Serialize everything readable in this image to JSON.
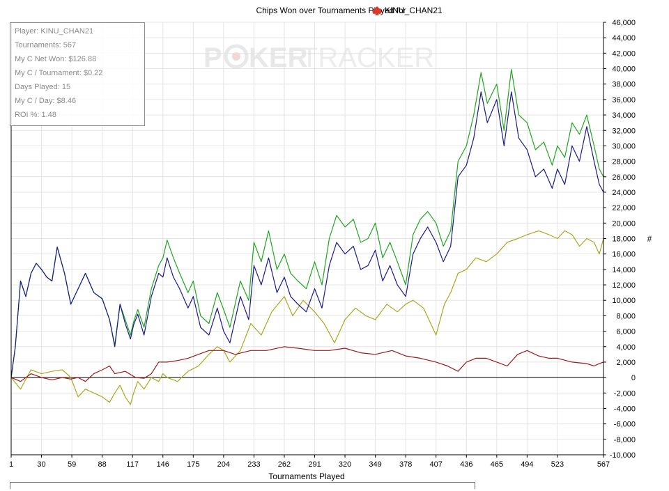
{
  "header": {
    "title_prefix": "Chips Won over Tournaments Played for",
    "player_name": "KINU_CHAN21",
    "player_icon": "poker-spade-icon",
    "watermark_left": "P",
    "watermark_chip": "chip-icon",
    "watermark_mid": "KER",
    "watermark_right": "TRACKER"
  },
  "stats": [
    {
      "label": "Player",
      "value": "KINU_CHAN21"
    },
    {
      "label": "Tournaments",
      "value": "567"
    },
    {
      "label": "My C Net Won",
      "value": "$126.88"
    },
    {
      "label": "My C / Tournament",
      "value": "$0.22"
    },
    {
      "label": "Days Played",
      "value": "15"
    },
    {
      "label": "My C / Day",
      "value": "$8.46"
    },
    {
      "label": "ROI %",
      "value": "1.48"
    }
  ],
  "colors": {
    "green": "#1fa61f",
    "blue": "#1a1a8c",
    "olive": "#a8a81e",
    "red": "#a01818",
    "grid": "#e4e4e4",
    "axis": "#000000",
    "watermark": "#ececec"
  },
  "chart_data": {
    "type": "line",
    "title": "Chips Won over Tournaments Played for KINU_CHAN21",
    "xlabel": "Tournaments Played",
    "ylabel": "#",
    "xlim": [
      1,
      567
    ],
    "ylim": [
      -10000,
      46000
    ],
    "x_ticks": [
      1,
      30,
      59,
      88,
      117,
      146,
      175,
      204,
      233,
      262,
      291,
      320,
      349,
      378,
      407,
      436,
      465,
      494,
      523,
      567
    ],
    "y_ticks": [
      46000,
      44000,
      42000,
      40000,
      38000,
      36000,
      34000,
      32000,
      30000,
      28000,
      26000,
      24000,
      22000,
      20000,
      18000,
      16000,
      14000,
      12000,
      10000,
      8000,
      6000,
      4000,
      2000,
      0,
      -2000,
      -4000,
      -6000,
      -8000,
      -10000
    ],
    "y_tick_labels": [
      "46,000",
      "44,000",
      "42,000",
      "40,000",
      "38,000",
      "36,000",
      "34,000",
      "32,000",
      "30,000",
      "28,000",
      "26,000",
      "24,000",
      "22,000",
      "20,000",
      "18,000",
      "16,000",
      "14,000",
      "12,000",
      "10,000",
      "8,000",
      "6,000",
      "4,000",
      "2,000",
      "0",
      "-2,000",
      "-4,000",
      "-6,000",
      "-8,000",
      "-10,000"
    ],
    "grid": true,
    "legend": "none",
    "series": [
      {
        "color": "#1fa61f",
        "x": [
          1,
          5,
          10,
          15,
          20,
          25,
          30,
          35,
          40,
          45,
          52,
          58,
          65,
          72,
          80,
          88,
          95,
          100,
          105,
          110,
          115,
          118,
          122,
          128,
          135,
          142,
          146,
          150,
          156,
          162,
          170,
          175,
          182,
          190,
          198,
          204,
          210,
          215,
          220,
          228,
          233,
          240,
          247,
          255,
          262,
          268,
          275,
          283,
          291,
          298,
          305,
          312,
          320,
          328,
          335,
          342,
          349,
          356,
          363,
          370,
          378,
          385,
          392,
          399,
          407,
          414,
          421,
          428,
          436,
          443,
          450,
          456,
          465,
          472,
          479,
          486,
          494,
          502,
          510,
          518,
          523,
          530,
          537,
          544,
          551,
          558,
          563,
          567
        ],
        "y": [
          0,
          4000,
          12500,
          10500,
          13500,
          14800,
          14000,
          13000,
          12500,
          16900,
          13500,
          9500,
          11500,
          13500,
          11000,
          10200,
          7500,
          4200,
          9500,
          7500,
          5500,
          7200,
          8800,
          6500,
          11500,
          14500,
          15500,
          17800,
          15500,
          13500,
          11000,
          12500,
          8000,
          7000,
          11000,
          8800,
          6500,
          9500,
          12500,
          10000,
          17500,
          15000,
          19000,
          14000,
          16000,
          13500,
          12500,
          11500,
          15000,
          12000,
          18000,
          21000,
          19500,
          20500,
          17500,
          18000,
          20000,
          15500,
          17500,
          15000,
          12000,
          18500,
          20500,
          21500,
          20000,
          17000,
          19000,
          28000,
          30000,
          34000,
          39500,
          35500,
          38000,
          32000,
          39900,
          34000,
          33000,
          29500,
          30500,
          27500,
          30000,
          28500,
          33000,
          31500,
          34000,
          30000,
          27000,
          26000
        ]
      },
      {
        "color": "#1a1a8c",
        "x": [
          1,
          5,
          10,
          15,
          20,
          25,
          30,
          35,
          40,
          45,
          52,
          58,
          65,
          72,
          80,
          88,
          95,
          100,
          105,
          110,
          115,
          118,
          122,
          128,
          135,
          142,
          146,
          150,
          156,
          162,
          170,
          175,
          182,
          190,
          198,
          204,
          210,
          215,
          220,
          228,
          233,
          240,
          247,
          255,
          262,
          268,
          275,
          283,
          291,
          298,
          305,
          312,
          320,
          328,
          335,
          342,
          349,
          356,
          363,
          370,
          378,
          385,
          392,
          399,
          407,
          414,
          421,
          428,
          436,
          443,
          450,
          456,
          465,
          472,
          479,
          486,
          494,
          502,
          510,
          518,
          523,
          530,
          537,
          544,
          551,
          558,
          563,
          567
        ],
        "y": [
          0,
          4000,
          12500,
          10500,
          13500,
          14800,
          14000,
          13000,
          12500,
          16900,
          13500,
          9500,
          11500,
          13500,
          11000,
          10200,
          7500,
          4000,
          9500,
          7000,
          5000,
          6800,
          8200,
          5500,
          10500,
          13500,
          13000,
          15500,
          13000,
          11500,
          9000,
          10500,
          6500,
          5500,
          9000,
          6000,
          4500,
          7500,
          10500,
          7500,
          14500,
          12000,
          15500,
          11000,
          13000,
          10500,
          9500,
          8500,
          11500,
          9000,
          14500,
          17500,
          16000,
          17000,
          14000,
          14500,
          16500,
          12500,
          14500,
          12000,
          10500,
          16000,
          18000,
          19500,
          17500,
          15000,
          17000,
          26000,
          27500,
          31000,
          37000,
          33000,
          36000,
          30000,
          37000,
          31000,
          29500,
          26000,
          27000,
          24500,
          27000,
          25000,
          30000,
          28000,
          32500,
          28000,
          25000,
          24000
        ]
      },
      {
        "color": "#a8a81e",
        "x": [
          1,
          10,
          20,
          30,
          40,
          50,
          58,
          65,
          72,
          80,
          88,
          95,
          100,
          105,
          110,
          115,
          118,
          122,
          128,
          135,
          142,
          146,
          150,
          160,
          170,
          180,
          190,
          198,
          204,
          210,
          220,
          230,
          240,
          250,
          262,
          270,
          280,
          291,
          300,
          310,
          320,
          330,
          340,
          349,
          360,
          370,
          378,
          385,
          395,
          407,
          415,
          421,
          428,
          436,
          445,
          455,
          465,
          475,
          485,
          494,
          505,
          515,
          523,
          530,
          537,
          544,
          551,
          558,
          563,
          567
        ],
        "y": [
          0,
          -1500,
          1000,
          500,
          800,
          1000,
          0,
          -2500,
          -1500,
          -2000,
          -2500,
          -3200,
          -2000,
          -1000,
          -2500,
          -3500,
          -2000,
          -500,
          -1500,
          0,
          -500,
          500,
          0,
          -500,
          800,
          1500,
          3000,
          4000,
          3500,
          2000,
          3500,
          7000,
          5500,
          8500,
          10500,
          8000,
          10000,
          8500,
          7000,
          4500,
          7500,
          9000,
          8000,
          7500,
          9500,
          8500,
          9500,
          10000,
          9000,
          5500,
          9500,
          11000,
          13500,
          14000,
          15500,
          15000,
          16000,
          17500,
          18000,
          18500,
          19000,
          18500,
          18000,
          19000,
          18500,
          17000,
          18000,
          17500,
          16000,
          18000
        ]
      },
      {
        "color": "#a01818",
        "x": [
          1,
          10,
          20,
          30,
          40,
          50,
          58,
          65,
          72,
          80,
          88,
          95,
          100,
          110,
          120,
          128,
          135,
          142,
          150,
          160,
          170,
          180,
          190,
          204,
          215,
          230,
          245,
          262,
          275,
          291,
          305,
          320,
          335,
          349,
          365,
          378,
          392,
          407,
          418,
          428,
          436,
          445,
          455,
          465,
          475,
          485,
          494,
          505,
          515,
          523,
          537,
          551,
          558,
          563,
          567
        ],
        "y": [
          0,
          -500,
          500,
          0,
          -300,
          0,
          -200,
          0,
          -500,
          500,
          1000,
          1500,
          500,
          800,
          0,
          -100,
          500,
          2000,
          2000,
          2200,
          2500,
          3000,
          3500,
          3500,
          3000,
          3500,
          3500,
          4000,
          3800,
          3500,
          3500,
          3800,
          3200,
          3000,
          3500,
          2800,
          2500,
          2000,
          1500,
          800,
          2000,
          2500,
          2500,
          2000,
          1500,
          3000,
          3500,
          2800,
          2500,
          2500,
          2000,
          1800,
          1500,
          1800,
          2000
        ]
      }
    ]
  }
}
